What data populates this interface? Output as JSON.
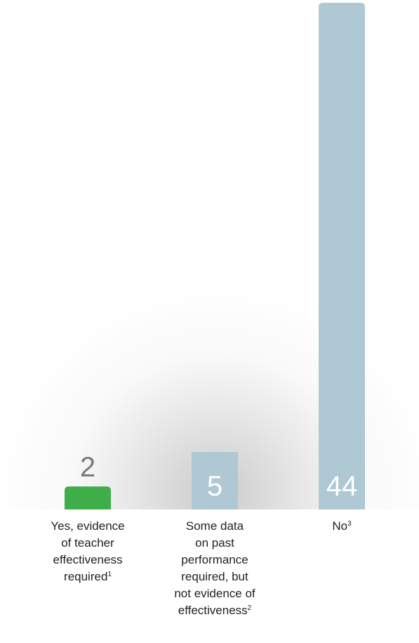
{
  "chart_data": {
    "type": "bar",
    "categories": [
      "Yes, evidence of teacher effectiveness required",
      "Some data on past performance required, but not evidence of effectiveness",
      "No"
    ],
    "values": [
      2,
      5,
      44
    ],
    "value_labels": [
      "2",
      "5",
      "44"
    ],
    "label_lines": [
      [
        "Yes, evidence",
        "of teacher",
        "effectiveness",
        "required"
      ],
      [
        "Some data",
        "on past",
        "performance",
        "required, but",
        "not evidence of",
        "effectiveness"
      ],
      [
        "No"
      ]
    ],
    "footnote_markers": [
      "1",
      "2",
      "3"
    ],
    "colors": [
      "#3fae49",
      "#aec9d3",
      "#aec9d3"
    ],
    "label_inside": [
      false,
      true,
      true
    ],
    "inside_label_color": "#ffffff",
    "outside_label_color": "#7a7a7a",
    "ylim": [
      0,
      44
    ],
    "grid": false,
    "xlabel": "",
    "ylabel": "",
    "title": ""
  }
}
